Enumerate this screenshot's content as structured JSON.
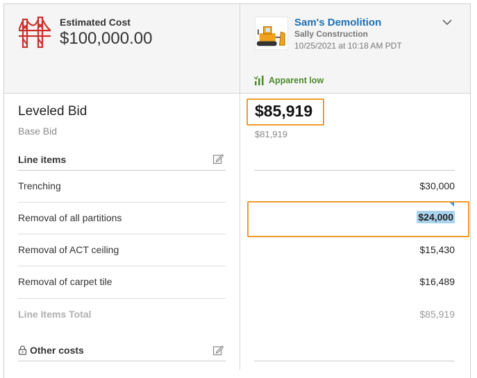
{
  "estimate": {
    "label": "Estimated Cost",
    "value": "$100,000.00",
    "icon": "bridge-icon"
  },
  "bidder": {
    "name": "Sam's Demolition",
    "company": "Sally Construction",
    "submitted": "10/25/2021 at 10:18 AM PDT",
    "logo": "bulldozer-logo",
    "status": "Apparent low"
  },
  "leveled": {
    "title": "Leveled Bid",
    "subtitle": "Base Bid",
    "amount": "$85,919",
    "base_amount": "$81,919"
  },
  "line_items": {
    "header": "Line items",
    "rows": [
      {
        "label": "Trenching",
        "value": "$30,000"
      },
      {
        "label": "Removal of all partitions",
        "value": "$24,000"
      },
      {
        "label": "Removal of ACT ceiling",
        "value": "$15,430"
      },
      {
        "label": "Removal of carpet tile",
        "value": "$16,489"
      }
    ],
    "total_label": "Line Items Total",
    "total_value": "$85,919"
  },
  "other_costs": {
    "header": "Other costs"
  },
  "colors": {
    "accent": "#1f6fb2",
    "highlight": "#f09a2b",
    "apparent_low": "#4c8a2c",
    "selection": "#a9d3ee"
  }
}
